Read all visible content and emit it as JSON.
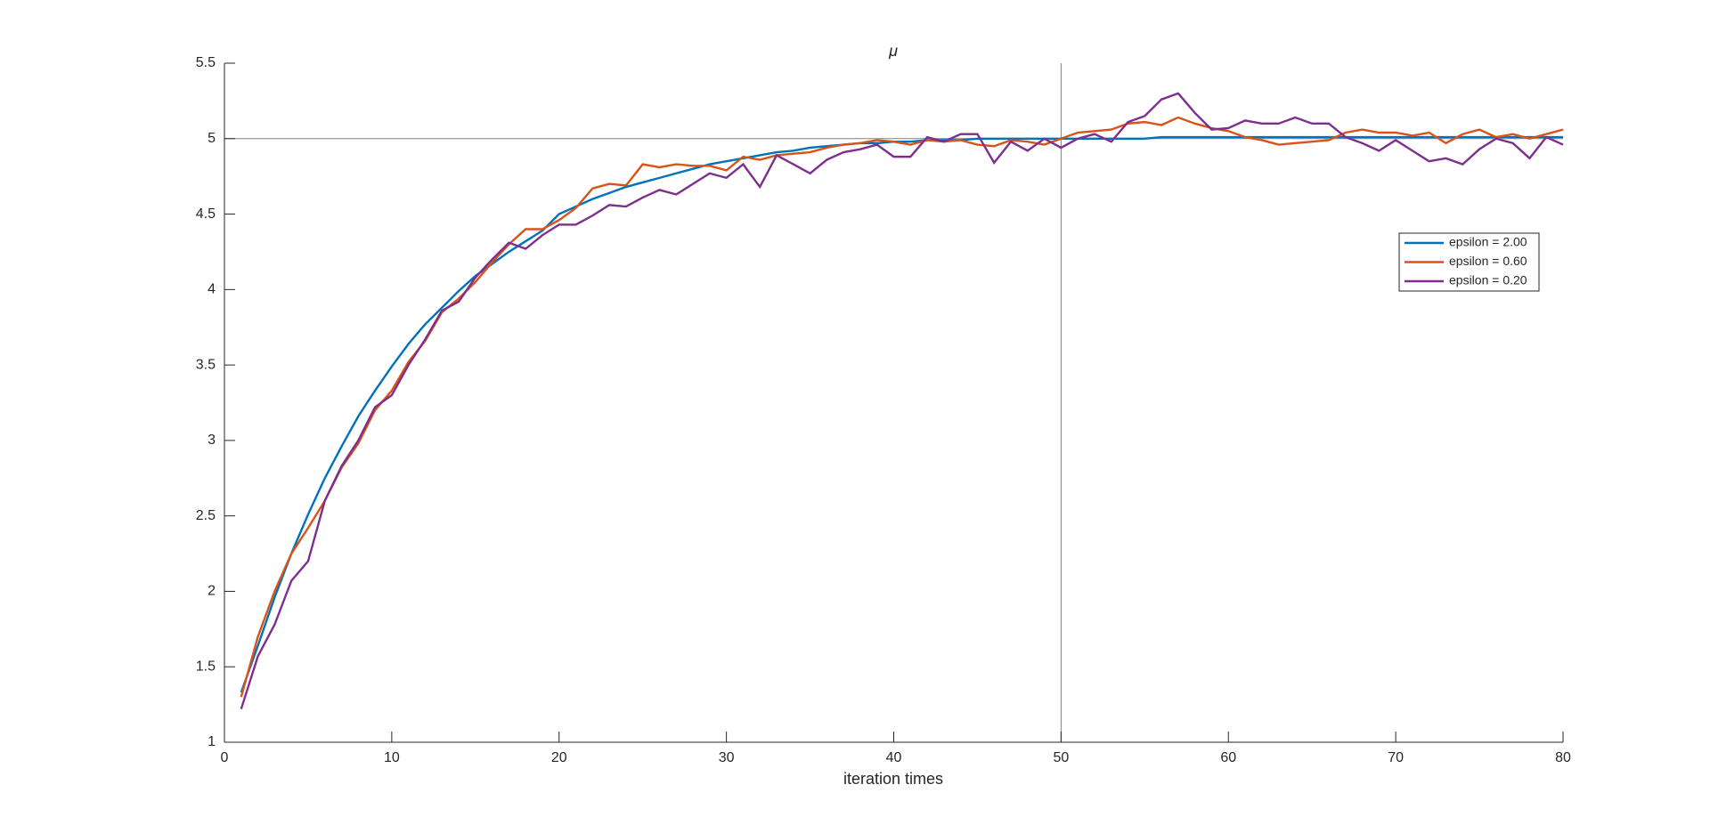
{
  "chart_data": {
    "type": "line",
    "title": "μ",
    "x_label": "iteration times",
    "x": [
      1,
      2,
      3,
      4,
      5,
      6,
      7,
      8,
      9,
      10,
      11,
      12,
      13,
      14,
      15,
      16,
      17,
      18,
      19,
      20,
      21,
      22,
      23,
      24,
      25,
      26,
      27,
      28,
      29,
      30,
      31,
      32,
      33,
      34,
      35,
      36,
      37,
      38,
      39,
      40,
      41,
      42,
      43,
      44,
      45,
      46,
      47,
      48,
      49,
      50,
      51,
      52,
      53,
      54,
      55,
      56,
      57,
      58,
      59,
      60,
      61,
      62,
      63,
      64,
      65,
      66,
      67,
      68,
      69,
      70,
      71,
      72,
      73,
      74,
      75,
      76,
      77,
      78,
      79,
      80
    ],
    "series": [
      {
        "name": "epsilon = 2.00",
        "color": "#0072bd",
        "values": [
          1.33,
          1.64,
          1.96,
          2.25,
          2.51,
          2.75,
          2.96,
          3.16,
          3.33,
          3.49,
          3.64,
          3.77,
          3.88,
          3.99,
          4.09,
          4.17,
          4.25,
          4.32,
          4.39,
          4.5,
          4.55,
          4.6,
          4.64,
          4.68,
          4.71,
          4.74,
          4.77,
          4.8,
          4.83,
          4.85,
          4.87,
          4.89,
          4.91,
          4.92,
          4.94,
          4.95,
          4.96,
          4.97,
          4.97,
          4.98,
          4.98,
          4.99,
          4.99,
          4.99,
          5.0,
          5.0,
          5.0,
          5.0,
          5.0,
          5.0,
          5.0,
          5.0,
          5.0,
          5.0,
          5.0,
          5.01,
          5.01,
          5.01,
          5.01,
          5.01,
          5.01,
          5.01,
          5.01,
          5.01,
          5.01,
          5.01,
          5.01,
          5.01,
          5.01,
          5.01,
          5.01,
          5.01,
          5.01,
          5.01,
          5.01,
          5.01,
          5.01,
          5.01,
          5.01,
          5.01
        ]
      },
      {
        "name": "epsilon = 0.60",
        "color": "#d95319",
        "values": [
          1.3,
          1.7,
          2.0,
          2.25,
          2.42,
          2.6,
          2.82,
          2.98,
          3.2,
          3.33,
          3.52,
          3.66,
          3.85,
          3.94,
          4.05,
          4.18,
          4.3,
          4.4,
          4.4,
          4.46,
          4.54,
          4.67,
          4.7,
          4.69,
          4.83,
          4.81,
          4.83,
          4.82,
          4.82,
          4.79,
          4.88,
          4.86,
          4.89,
          4.9,
          4.91,
          4.94,
          4.96,
          4.97,
          4.99,
          4.98,
          4.96,
          4.99,
          4.98,
          4.99,
          4.96,
          4.95,
          4.99,
          4.98,
          4.96,
          5.0,
          5.04,
          5.05,
          5.06,
          5.1,
          5.11,
          5.09,
          5.14,
          5.1,
          5.07,
          5.05,
          5.01,
          4.99,
          4.96,
          4.97,
          4.98,
          4.99,
          5.04,
          5.06,
          5.04,
          5.04,
          5.02,
          5.04,
          4.97,
          5.03,
          5.06,
          5.01,
          5.03,
          5.0,
          5.03,
          5.06
        ]
      },
      {
        "name": "epsilon = 0.20",
        "color": "#7e2f8e",
        "values": [
          1.22,
          1.57,
          1.78,
          2.07,
          2.2,
          2.6,
          2.83,
          3.0,
          3.22,
          3.3,
          3.5,
          3.67,
          3.86,
          3.92,
          4.08,
          4.2,
          4.31,
          4.27,
          4.36,
          4.43,
          4.43,
          4.49,
          4.56,
          4.55,
          4.61,
          4.66,
          4.63,
          4.7,
          4.77,
          4.74,
          4.83,
          4.68,
          4.89,
          4.83,
          4.77,
          4.86,
          4.91,
          4.93,
          4.96,
          4.88,
          4.88,
          5.01,
          4.98,
          5.03,
          5.03,
          4.84,
          4.98,
          4.92,
          5.0,
          4.94,
          5.0,
          5.03,
          4.98,
          5.11,
          5.15,
          5.26,
          5.3,
          5.17,
          5.06,
          5.07,
          5.12,
          5.1,
          5.1,
          5.14,
          5.1,
          5.1,
          5.01,
          4.97,
          4.92,
          4.99,
          4.92,
          4.85,
          4.87,
          4.83,
          4.93,
          5.0,
          4.97,
          4.87,
          5.01,
          4.96
        ]
      }
    ],
    "xlim": [
      0,
      80
    ],
    "xticks": [
      0,
      10,
      20,
      30,
      40,
      50,
      60,
      70,
      80
    ],
    "ylim": [
      1,
      5.5
    ],
    "yticks": [
      1,
      1.5,
      2,
      2.5,
      3,
      3.5,
      4,
      4.5,
      5,
      5.5
    ],
    "hline": 5,
    "vline": 50,
    "legend": "right"
  }
}
